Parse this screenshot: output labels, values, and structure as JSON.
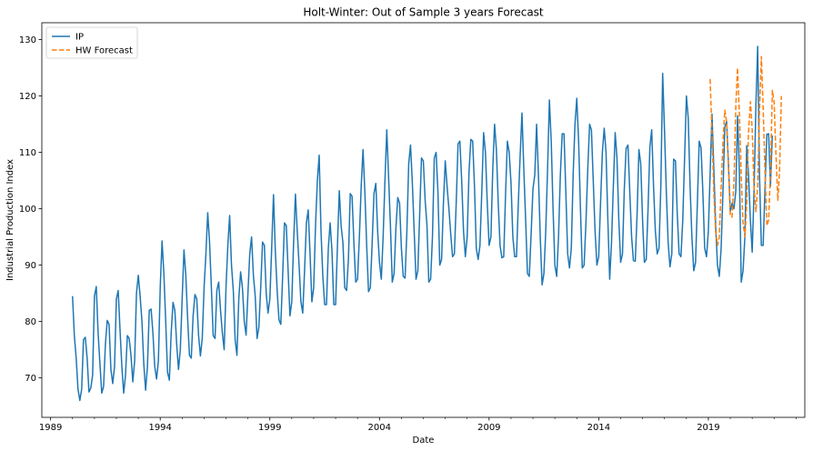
{
  "chart_data": {
    "type": "line",
    "title": "Holt-Winter: Out of Sample 3 years Forecast",
    "xlabel": "Date",
    "ylabel": "Industrial Production Index",
    "xlim": [
      1988.6,
      2023.4
    ],
    "ylim": [
      63,
      133
    ],
    "x_ticks": [
      1989,
      1994,
      1999,
      2004,
      2009,
      2014,
      2019
    ],
    "x_tick_labels": [
      "1989",
      "1994",
      "1999",
      "2004",
      "2009",
      "2014",
      "2019"
    ],
    "y_ticks": [
      70,
      80,
      90,
      100,
      110,
      120,
      130
    ],
    "y_tick_labels": [
      "70",
      "80",
      "90",
      "100",
      "110",
      "120",
      "130"
    ],
    "grid": false,
    "legend_position": "top-left",
    "series": [
      {
        "name": "IP",
        "color": "#1f77b4",
        "style": "solid",
        "monthly_start": "1990-01",
        "annual_profiles": [
          {
            "year": 1990,
            "values": [
              84.5,
              77.5,
              73.5,
              68.0,
              66.0,
              68.0,
              76.8,
              77.2,
              73.5,
              67.5,
              68.2,
              70.5
            ]
          },
          {
            "year": 1991,
            "values": [
              84.5,
              86.2,
              78.0,
              72.5,
              67.3,
              68.5,
              76.0,
              80.2,
              79.5,
              71.5,
              69.0,
              72.0
            ]
          },
          {
            "year": 1992,
            "values": [
              84.0,
              85.5,
              78.5,
              72.0,
              67.3,
              70.5,
              77.5,
              77.0,
              74.0,
              69.3,
              73.0,
              85.0
            ]
          },
          {
            "year": 1993,
            "values": [
              88.2,
              84.5,
              80.0,
              72.5,
              67.8,
              72.0,
              82.0,
              82.2,
              78.0,
              72.0,
              69.8,
              73.0
            ]
          },
          {
            "year": 1994,
            "values": [
              86.0,
              94.3,
              88.5,
              80.0,
              71.0,
              69.6,
              78.0,
              83.4,
              82.0,
              76.0,
              71.5,
              75.0
            ]
          },
          {
            "year": 1995,
            "values": [
              84.0,
              92.7,
              88.2,
              80.5,
              74.0,
              73.5,
              81.0,
              84.8,
              84.0,
              77.5,
              73.9,
              77.0
            ]
          },
          {
            "year": 1996,
            "values": [
              86.0,
              92.0,
              99.3,
              94.0,
              86.0,
              77.5,
              77.0,
              85.5,
              87.0,
              82.0,
              78.0,
              75.0
            ]
          },
          {
            "year": 1997,
            "values": [
              86.0,
              93.5,
              98.8,
              90.0,
              85.5,
              76.8,
              74.0,
              84.0,
              88.8,
              86.0,
              80.0,
              77.6
            ]
          },
          {
            "year": 1998,
            "values": [
              85.0,
              92.0,
              95.0,
              88.2,
              84.5,
              77.0,
              79.0,
              86.0,
              94.1,
              93.5,
              85.0,
              81.5
            ]
          },
          {
            "year": 1999,
            "values": [
              84.0,
              93.0,
              102.5,
              92.5,
              85.5,
              80.3,
              79.5,
              88.0,
              97.5,
              97.0,
              89.0,
              81.0
            ]
          },
          {
            "year": 2000,
            "values": [
              83.5,
              94.0,
              102.6,
              96.0,
              90.0,
              83.5,
              81.5,
              89.0,
              97.5,
              99.8,
              92.0,
              83.5
            ]
          },
          {
            "year": 2001,
            "values": [
              86.0,
              97.0,
              105.0,
              109.5,
              96.0,
              88.0,
              83.0,
              83.0,
              93.0,
              97.5,
              92.5,
              83.0
            ]
          },
          {
            "year": 2002,
            "values": [
              83.0,
              93.5,
              103.2,
              97.0,
              94.0,
              86.0,
              85.5,
              91.0,
              102.7,
              102.2,
              94.0,
              87.0
            ]
          },
          {
            "year": 2003,
            "values": [
              87.5,
              95.0,
              104.0,
              110.5,
              103.0,
              93.5,
              85.3,
              86.0,
              94.0,
              102.7,
              104.5,
              96.0
            ]
          },
          {
            "year": 2004,
            "values": [
              90.5,
              87.5,
              95.0,
              105.0,
              114.0,
              105.5,
              97.0,
              87.0,
              88.5,
              96.5,
              102.0,
              101.0
            ]
          },
          {
            "year": 2005,
            "values": [
              93.0,
              88.0,
              87.7,
              96.0,
              108.0,
              111.3,
              104.5,
              96.0,
              87.5,
              89.0,
              99.0,
              109.0
            ]
          },
          {
            "year": 2006,
            "values": [
              108.5,
              101.5,
              97.0,
              87.0,
              87.5,
              95.0,
              109.0,
              110.0,
              103.0,
              90.0,
              91.0,
              101.0
            ]
          },
          {
            "year": 2007,
            "values": [
              108.5,
              104.0,
              100.0,
              95.5,
              91.5,
              92.0,
              101.0,
              111.5,
              112.0,
              105.0,
              96.0,
              91.5
            ]
          },
          {
            "year": 2008,
            "values": [
              95.0,
              106.5,
              112.3,
              112.0,
              104.0,
              93.0,
              91.0,
              93.5,
              103.0,
              113.5,
              110.0,
              101.0
            ]
          },
          {
            "year": 2009,
            "values": [
              93.5,
              95.0,
              107.0,
              115.0,
              110.5,
              101.0,
              93.5,
              91.3,
              91.5,
              102.5,
              112.0,
              110.0
            ]
          },
          {
            "year": 2010,
            "values": [
              104.5,
              95.0,
              91.5,
              91.5,
              101.0,
              109.5,
              117.0,
              107.0,
              98.0,
              88.5,
              88.0,
              95.5
            ]
          },
          {
            "year": 2011,
            "values": [
              103.5,
              106.0,
              115.0,
              106.0,
              95.0,
              86.5,
              88.5,
              96.0,
              107.0,
              119.3,
              112.0,
              100.0
            ]
          },
          {
            "year": 2012,
            "values": [
              90.0,
              88.0,
              95.0,
              106.0,
              113.3,
              113.3,
              103.0,
              92.0,
              89.5,
              93.0,
              106.0,
              115.0
            ]
          },
          {
            "year": 2013,
            "values": [
              119.6,
              112.0,
              100.0,
              89.5,
              90.0,
              97.5,
              107.0,
              115.0,
              114.0,
              105.0,
              96.0,
              90.0
            ]
          },
          {
            "year": 2014,
            "values": [
              91.5,
              101.0,
              110.0,
              114.3,
              110.0,
              98.0,
              87.5,
              94.0,
              104.0,
              113.5,
              109.0,
              98.0
            ]
          },
          {
            "year": 2015,
            "values": [
              90.5,
              92.0,
              103.5,
              110.7,
              111.3,
              103.0,
              95.0,
              90.8,
              90.7,
              99.0,
              110.5,
              108.0
            ]
          },
          {
            "year": 2016,
            "values": [
              98.0,
              90.5,
              91.0,
              100.0,
              111.0,
              114.0,
              104.0,
              96.0,
              92.0,
              93.0,
              104.0,
              124.0
            ]
          },
          {
            "year": 2017,
            "values": [
              114.0,
              103.0,
              94.0,
              89.7,
              92.0,
              108.8,
              108.5,
              99.0,
              92.0,
              91.5,
              98.0,
              109.0
            ]
          },
          {
            "year": 2018,
            "values": [
              120.0,
              116.0,
              104.0,
              95.0,
              89.0,
              90.5,
              101.0,
              112.0,
              110.8,
              103.0,
              93.0,
              91.5
            ]
          },
          {
            "year": 2019,
            "values": [
              96.0,
              106.5,
              116.8,
              107.0,
              97.0,
              90.0,
              88.0,
              93.0,
              103.0,
              114.5,
              115.5,
              108.0
            ]
          },
          {
            "year": 2020,
            "values": [
              99.5,
              101.0,
              100.0,
              103.0,
              116.5,
              106.5,
              87.0,
              89.0,
              95.0,
              111.2,
              106.0,
              98.0
            ]
          },
          {
            "year": 2021,
            "values": [
              92.3,
              103.0,
              118.0,
              128.8,
              106.0,
              93.5,
              93.5,
              103.5,
              113.2,
              113.3,
              104.0,
              113.0
            ]
          }
        ]
      },
      {
        "name": "HW Forecast",
        "color": "#ff7f0e",
        "style": "dashed",
        "points": [
          [
            2019.08,
            123.0
          ],
          [
            2019.17,
            113.0
          ],
          [
            2019.25,
            103.0
          ],
          [
            2019.33,
            96.0
          ],
          [
            2019.42,
            93.5
          ],
          [
            2019.5,
            95.0
          ],
          [
            2019.58,
            103.5
          ],
          [
            2019.67,
            112.0
          ],
          [
            2019.75,
            117.5
          ],
          [
            2019.83,
            115.5
          ],
          [
            2019.92,
            107.0
          ],
          [
            2020.0,
            99.0
          ],
          [
            2020.08,
            98.5
          ],
          [
            2020.17,
            105.0
          ],
          [
            2020.25,
            118.0
          ],
          [
            2020.33,
            125.0
          ],
          [
            2020.42,
            116.5
          ],
          [
            2020.5,
            106.0
          ],
          [
            2020.58,
            97.5
          ],
          [
            2020.67,
            95.0
          ],
          [
            2020.75,
            101.0
          ],
          [
            2020.83,
            113.5
          ],
          [
            2020.92,
            119.0
          ],
          [
            2021.0,
            114.0
          ],
          [
            2021.08,
            104.0
          ],
          [
            2021.17,
            99.5
          ],
          [
            2021.25,
            104.0
          ],
          [
            2021.33,
            117.0
          ],
          [
            2021.42,
            127.0
          ],
          [
            2021.5,
            118.0
          ],
          [
            2021.58,
            107.0
          ],
          [
            2021.67,
            97.0
          ],
          [
            2021.75,
            98.0
          ],
          [
            2021.83,
            106.0
          ],
          [
            2021.92,
            121.0
          ],
          [
            2022.0,
            119.0
          ],
          [
            2022.08,
            110.0
          ],
          [
            2022.17,
            101.5
          ],
          [
            2022.25,
            107.0
          ],
          [
            2022.33,
            120.0
          ]
        ]
      }
    ]
  }
}
